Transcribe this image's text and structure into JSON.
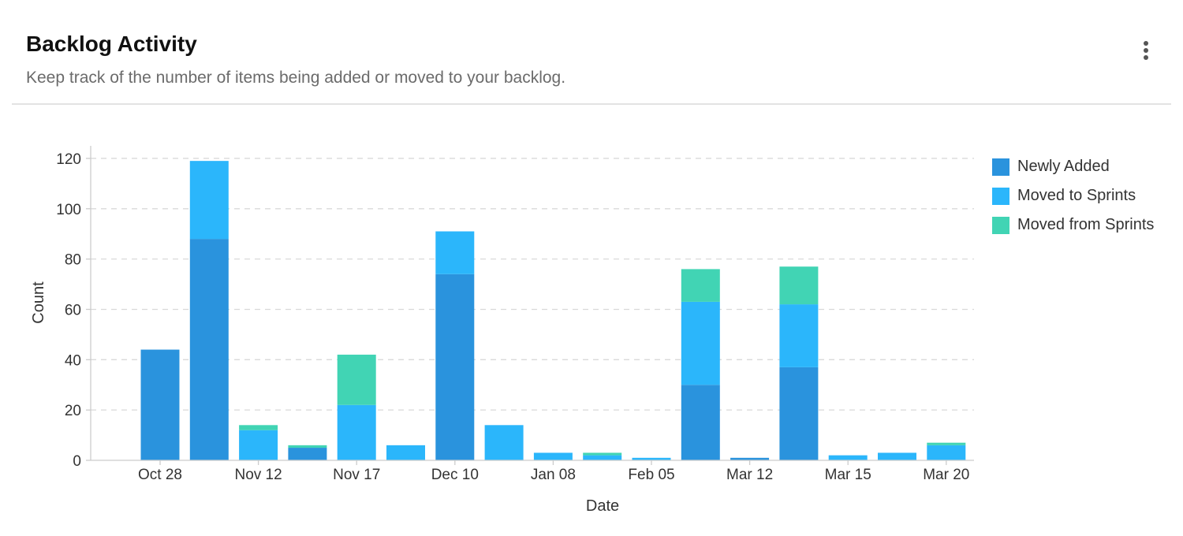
{
  "header": {
    "title": "Backlog Activity",
    "subtitle": "Keep track of the number of items being added or moved to your backlog."
  },
  "menu": {
    "icon": "more-vertical-icon"
  },
  "colors": {
    "newly_added": "#2a93dd",
    "moved_to_sprints": "#2bb6fb",
    "moved_from_sprints": "#41d4b4",
    "grid": "#d9d9d9",
    "axis": "#cccccc",
    "tick_text": "#333333"
  },
  "chart_data": {
    "type": "bar",
    "stacked": true,
    "xlabel": "Date",
    "ylabel": "Count",
    "ylim": [
      0,
      125
    ],
    "yticks": [
      0,
      20,
      40,
      60,
      80,
      100,
      120
    ],
    "grid": true,
    "legend_position": "right",
    "x_tick_labels": [
      "Oct 28",
      "Nov 12",
      "Nov 17",
      "Dec 10",
      "Jan 08",
      "Feb 05",
      "Mar 12",
      "Mar 15",
      "Mar 20"
    ],
    "bar_count": 17,
    "series": [
      {
        "name": "Newly Added",
        "color": "#2a93dd",
        "values": [
          44,
          88,
          0,
          5,
          0,
          0,
          74,
          0,
          0,
          0,
          0,
          30,
          1,
          37,
          0,
          0,
          0
        ]
      },
      {
        "name": "Moved to Sprints",
        "color": "#2bb6fb",
        "values": [
          0,
          31,
          12,
          0,
          22,
          6,
          17,
          14,
          3,
          2,
          1,
          33,
          0,
          25,
          2,
          3,
          6
        ]
      },
      {
        "name": "Moved from Sprints",
        "color": "#41d4b4",
        "values": [
          0,
          0,
          2,
          1,
          20,
          0,
          0,
          0,
          0,
          1,
          0,
          13,
          0,
          15,
          0,
          0,
          1
        ]
      }
    ]
  }
}
